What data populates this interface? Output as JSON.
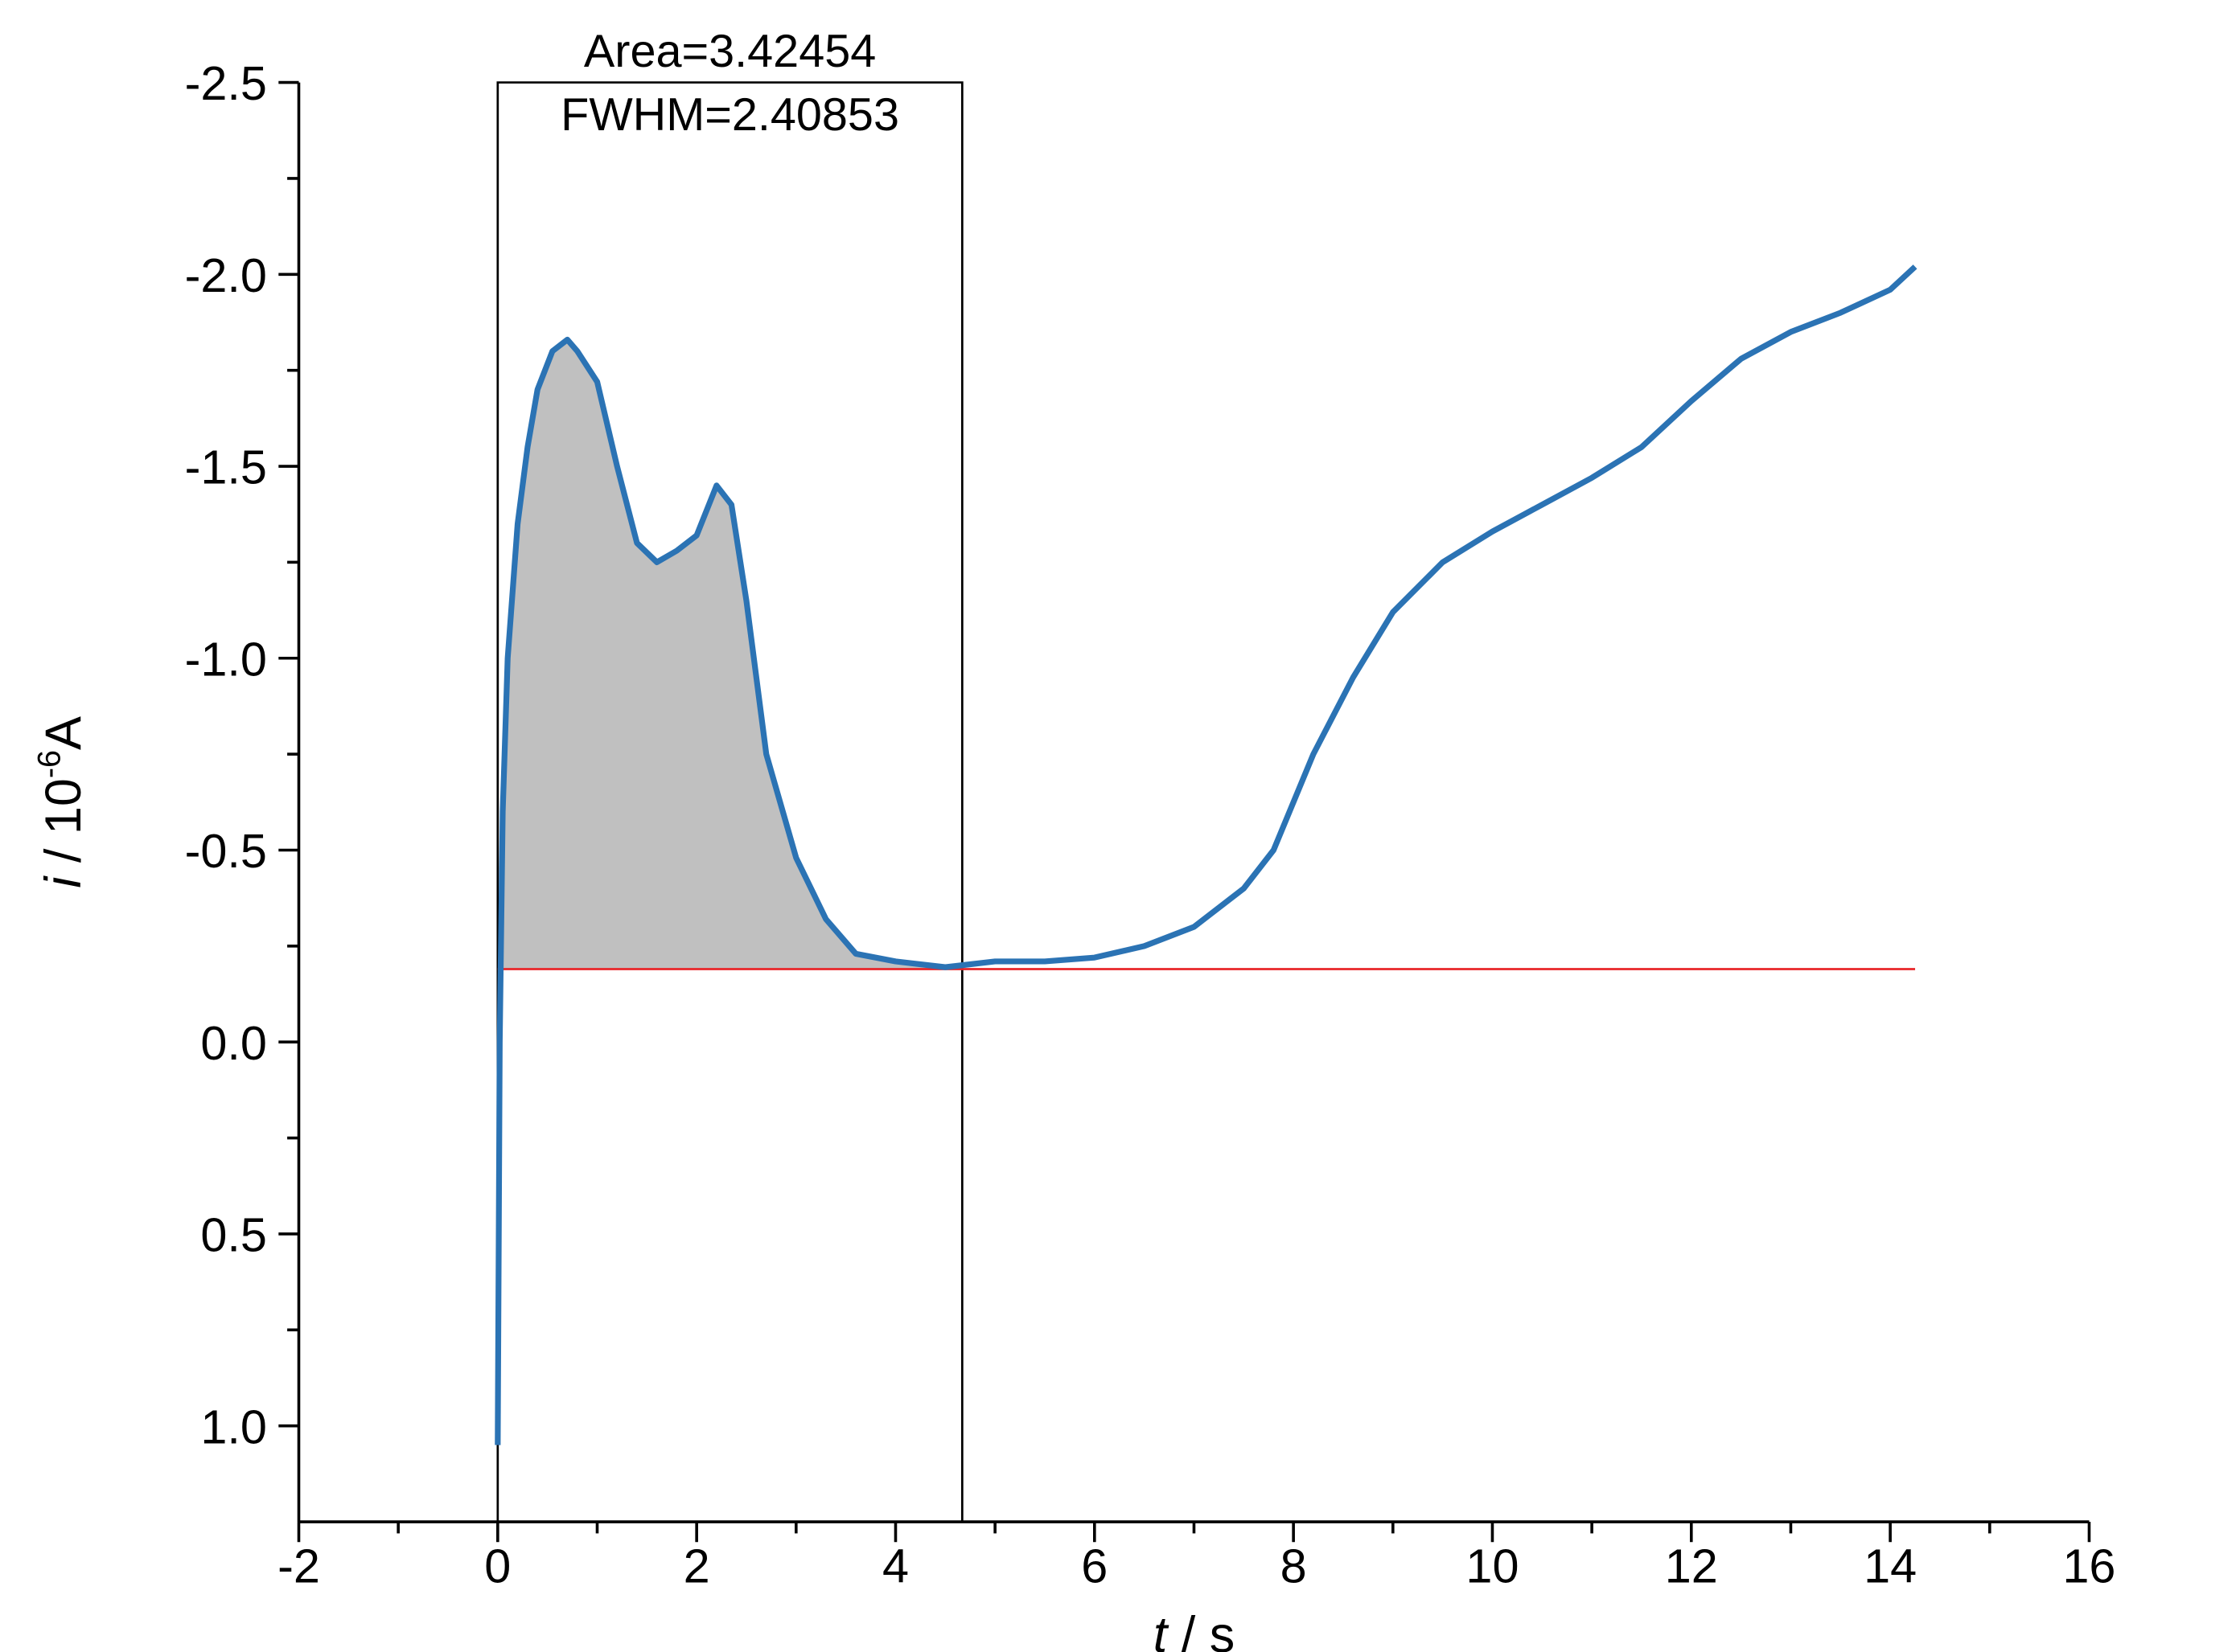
{
  "chart_data": {
    "type": "line",
    "x_label": {
      "symbol": "t",
      "rest": " / s"
    },
    "y_label": {
      "symbol": "i",
      "rest": " / 10",
      "exponent": "-6",
      "unit": "A"
    },
    "annotations": [
      "Area=3.42454",
      "FWHM=2.40853"
    ],
    "xlim": [
      -2,
      16
    ],
    "xticks": [
      -2,
      0,
      2,
      4,
      6,
      8,
      10,
      12,
      14,
      16
    ],
    "ylim": [
      -2.5,
      1.25
    ],
    "y_inverted": true,
    "yticks": [
      -2.5,
      {
        "value": -2.0,
        "label": "-2.0"
      },
      -1.5,
      {
        "value": -1.0,
        "label": "-1.0"
      },
      -0.5,
      {
        "value": 0.0,
        "label": "0.0"
      },
      0.5,
      {
        "value": 1.0,
        "label": "1.0"
      }
    ],
    "baseline": {
      "value": -0.19,
      "color": "#e8262a"
    },
    "integration_range": [
      0,
      4.67
    ],
    "fill_color": "#c0c0c0",
    "series": [
      {
        "color": "#2b73b4",
        "x": [
          0.0,
          0.02,
          0.05,
          0.1,
          0.2,
          0.3,
          0.4,
          0.55,
          0.7,
          0.8,
          1.0,
          1.2,
          1.4,
          1.6,
          1.8,
          2.0,
          2.2,
          2.35,
          2.5,
          2.7,
          3.0,
          3.3,
          3.6,
          4.0,
          4.5,
          5.0,
          5.5,
          6.0,
          6.5,
          7.0,
          7.5,
          7.8,
          8.2,
          8.6,
          9.0,
          9.5,
          10.0,
          10.5,
          11.0,
          11.5,
          12.0,
          12.5,
          13.0,
          13.5,
          14.0,
          14.25
        ],
        "values": [
          1.05,
          0.0,
          -0.6,
          -1.0,
          -1.35,
          -1.55,
          -1.7,
          -1.8,
          -1.83,
          -1.8,
          -1.72,
          -1.5,
          -1.3,
          -1.25,
          -1.28,
          -1.32,
          -1.45,
          -1.4,
          -1.15,
          -0.75,
          -0.48,
          -0.32,
          -0.23,
          -0.21,
          -0.195,
          -0.21,
          -0.21,
          -0.22,
          -0.25,
          -0.3,
          -0.4,
          -0.5,
          -0.75,
          -0.95,
          -1.12,
          -1.25,
          -1.33,
          -1.4,
          -1.47,
          -1.55,
          -1.67,
          -1.78,
          -1.85,
          -1.9,
          -1.96,
          -2.02
        ]
      }
    ]
  }
}
